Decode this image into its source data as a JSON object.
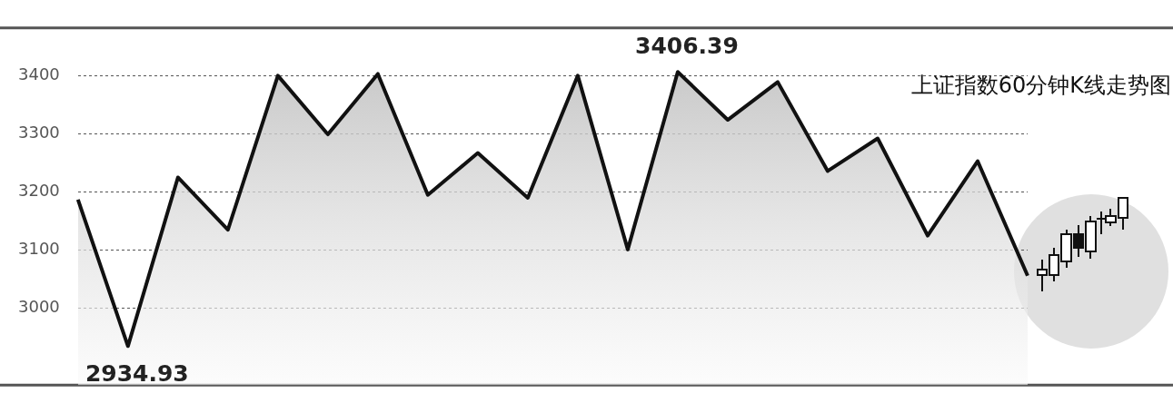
{
  "chart_data": {
    "type": "area",
    "title": "上证指数60分钟K线走势图",
    "categories": [
      null,
      null,
      null,
      null,
      null,
      null,
      null,
      null,
      null,
      null,
      null,
      null,
      null,
      null,
      null,
      null,
      null,
      null,
      null,
      null
    ],
    "series": [
      {
        "color": "#111111",
        "values": [
          3187,
          2934.93,
          3225,
          3135,
          3400,
          3299,
          3403,
          3195,
          3267,
          3190,
          3400,
          3101,
          3406.39,
          3324,
          3389,
          3236,
          3292,
          3125,
          3253,
          3056
        ],
        "value_labels": [
          null,
          "2934.93",
          null,
          null,
          null,
          null,
          null,
          null,
          null,
          null,
          null,
          null,
          "3406.39",
          null,
          null,
          null,
          null,
          null,
          null,
          null
        ]
      }
    ],
    "ylim": [
      2868,
      3482
    ],
    "yticks": [
      3000,
      3100,
      3200,
      3300,
      3400
    ],
    "grid": "y",
    "tick_labels": "y",
    "legend": false
  }
}
